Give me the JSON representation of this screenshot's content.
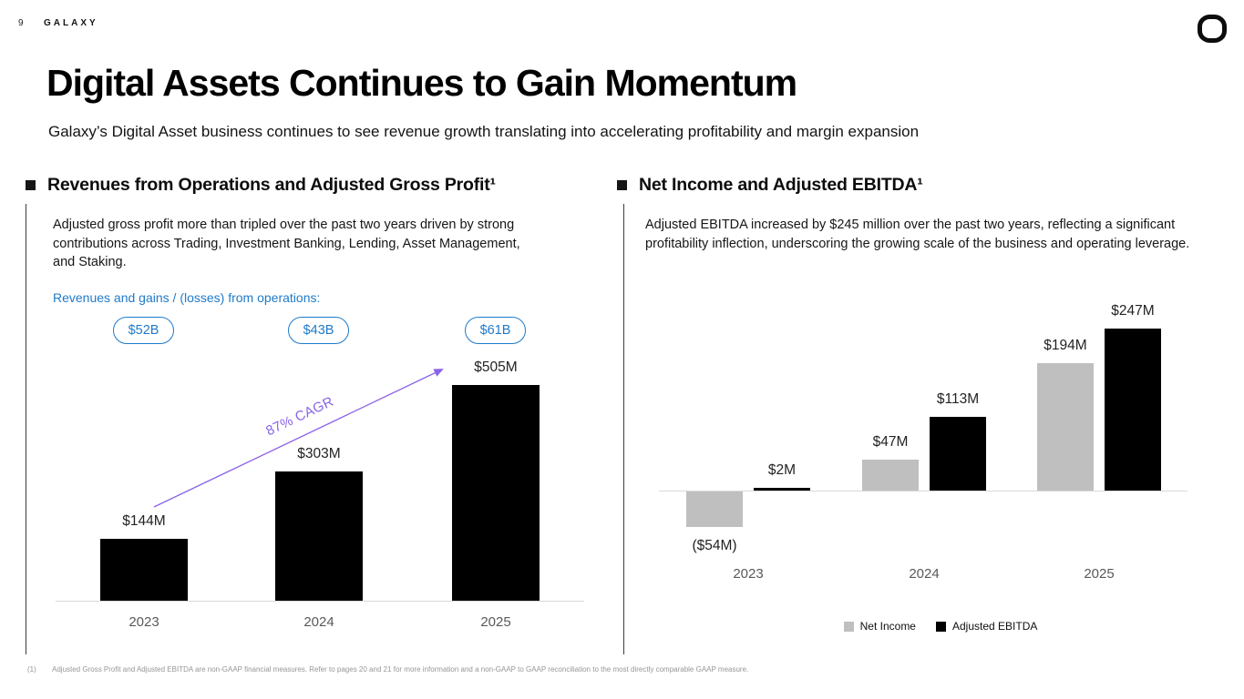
{
  "page": {
    "page_number": "9",
    "brand": "GALAXY",
    "title": "Digital Assets Continues to Gain Momentum",
    "subtitle": "Galaxy’s Digital Asset business continues to see revenue growth translating into accelerating profitability and margin expansion",
    "footnote_marker": "(1)",
    "footnote_text": "Adjusted Gross Profit and Adjusted EBITDA are non-GAAP financial measures. Refer to pages 20 and 21 for more information and a non-GAAP to GAAP reconciliation to the most directly comparable GAAP measure."
  },
  "left_section": {
    "heading": "Revenues from Operations and Adjusted Gross Profit¹",
    "body": "Adjusted gross profit more than tripled over the past two years driven by strong contributions across Trading, Investment Banking, Lending, Asset Management, and Staking.",
    "callout_label": "Revenues and gains / (losses) from operations:"
  },
  "right_section": {
    "heading": "Net Income and Adjusted EBITDA¹",
    "body": "Adjusted EBITDA increased by $245 million over the past two years, reflecting a significant profitability inflection, underscoring the growing scale of the business and operating leverage."
  },
  "chart_data": [
    {
      "type": "bar",
      "title": "Revenues from Operations and Adjusted Gross Profit",
      "categories": [
        "2023",
        "2024",
        "2025"
      ],
      "series": [
        {
          "name": "Adjusted Gross Profit",
          "values": [
            144,
            303,
            505
          ]
        }
      ],
      "value_labels": [
        "$144M",
        "$303M",
        "$505M"
      ],
      "revenue_pills": [
        "$52B",
        "$43B",
        "$61B"
      ],
      "annotation": "87% CAGR",
      "unit": "USD millions",
      "bar_color": "#000000",
      "grid": false,
      "ylim": [
        0,
        550
      ]
    },
    {
      "type": "bar",
      "title": "Net Income and Adjusted EBITDA",
      "categories": [
        "2023",
        "2024",
        "2025"
      ],
      "series": [
        {
          "name": "Net Income",
          "values": [
            -54,
            47,
            194
          ],
          "labels": [
            "($54M)",
            "$47M",
            "$194M"
          ],
          "color": "#bfbfbf"
        },
        {
          "name": "Adjusted EBITDA",
          "values": [
            2,
            113,
            247
          ],
          "labels": [
            "$2M",
            "$113M",
            "$247M"
          ],
          "color": "#000000"
        }
      ],
      "legend": [
        "Net Income",
        "Adjusted EBITDA"
      ],
      "legend_position": "bottom",
      "unit": "USD millions",
      "grid": false,
      "ylim": [
        -80,
        280
      ]
    }
  ],
  "colors": {
    "accent_blue": "#1f7ac9",
    "accent_purple": "#8a63e8",
    "bar_black": "#000000",
    "bar_gray": "#bfbfbf",
    "axis_gray": "#d9d9d9",
    "tick_label_gray": "#595959",
    "footnote_gray": "#969696"
  }
}
